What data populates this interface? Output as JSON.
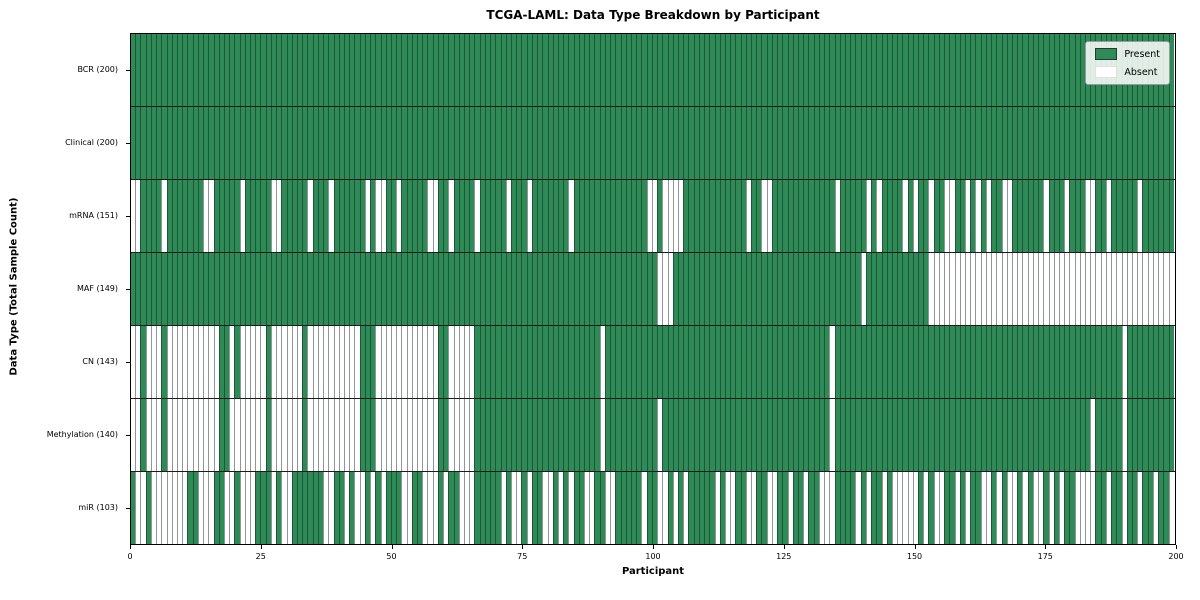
{
  "figure": {
    "title": "TCGA-LAML: Data Type Breakdown by Participant",
    "xlabel": "Participant",
    "ylabel": "Data Type (Total Sample Count)"
  },
  "chart_data": {
    "type": "heatmap",
    "title": "TCGA-LAML: Data Type Breakdown by Participant",
    "xlabel": "Participant",
    "ylabel": "Data Type (Total Sample Count)",
    "x_range": [
      0,
      200
    ],
    "x_ticks": [
      0,
      25,
      50,
      75,
      100,
      125,
      150,
      175,
      200
    ],
    "n_participants": 200,
    "grid": false,
    "colors": {
      "present": "#2e8b57",
      "absent": "#ffffff",
      "cell_edge": "#1b1b1b",
      "plot_border": "#000000"
    },
    "legend": {
      "position": "upper right",
      "entries": [
        {
          "label": "Present",
          "color": "#2e8b57"
        },
        {
          "label": "Absent",
          "color": "#ffffff"
        }
      ]
    },
    "rows": [
      {
        "label": "BCR (200)",
        "name": "BCR",
        "present_count": 200,
        "absent_indices": []
      },
      {
        "label": "Clinical (200)",
        "name": "Clinical",
        "present_count": 200,
        "absent_indices": []
      },
      {
        "label": "mRNA (151)",
        "name": "mRNA",
        "present_count": 151,
        "absent_indices": [
          0,
          1,
          6,
          14,
          15,
          21,
          27,
          28,
          34,
          38,
          45,
          47,
          48,
          51,
          57,
          58,
          61,
          66,
          72,
          76,
          84,
          99,
          100,
          102,
          103,
          104,
          105,
          118,
          121,
          122,
          135,
          141,
          143,
          148,
          150,
          153,
          156,
          157,
          160,
          162,
          164,
          167,
          168,
          175,
          179,
          183,
          184,
          187,
          193
        ]
      },
      {
        "label": "MAF (149)",
        "name": "MAF",
        "present_count": 149,
        "absent_indices": [
          101,
          102,
          103,
          140,
          153,
          154,
          155,
          156,
          157,
          158,
          159,
          160,
          161,
          162,
          163,
          164,
          165,
          166,
          167,
          168,
          169,
          170,
          171,
          172,
          173,
          174,
          175,
          176,
          177,
          178,
          179,
          180,
          181,
          182,
          183,
          184,
          185,
          186,
          187,
          188,
          189,
          190,
          191,
          192,
          193,
          194,
          195,
          196,
          197,
          198,
          199
        ]
      },
      {
        "label": "CN (143)",
        "name": "CN",
        "present_count": 143,
        "absent_indices": [
          0,
          1,
          3,
          4,
          5,
          7,
          8,
          9,
          10,
          11,
          12,
          13,
          14,
          15,
          16,
          19,
          21,
          22,
          23,
          24,
          25,
          27,
          28,
          29,
          30,
          31,
          32,
          34,
          35,
          36,
          37,
          38,
          39,
          40,
          41,
          42,
          43,
          47,
          48,
          49,
          50,
          51,
          52,
          53,
          54,
          55,
          56,
          57,
          58,
          61,
          62,
          63,
          64,
          65,
          90,
          134,
          190
        ]
      },
      {
        "label": "Methylation (140)",
        "name": "Methylation",
        "present_count": 140,
        "absent_indices": [
          0,
          1,
          3,
          4,
          5,
          7,
          8,
          9,
          10,
          11,
          12,
          13,
          14,
          15,
          16,
          19,
          20,
          21,
          22,
          23,
          24,
          25,
          27,
          28,
          29,
          30,
          31,
          32,
          34,
          35,
          36,
          37,
          38,
          39,
          40,
          41,
          42,
          43,
          47,
          48,
          49,
          50,
          51,
          52,
          53,
          54,
          55,
          56,
          57,
          58,
          61,
          62,
          63,
          64,
          65,
          90,
          101,
          134,
          184,
          190
        ]
      },
      {
        "label": "miR (103)",
        "name": "miR",
        "present_count": 103,
        "absent_indices": [
          1,
          2,
          4,
          5,
          6,
          7,
          8,
          9,
          10,
          13,
          14,
          15,
          18,
          19,
          21,
          22,
          23,
          27,
          29,
          30,
          37,
          38,
          41,
          43,
          44,
          46,
          48,
          52,
          53,
          56,
          57,
          58,
          60,
          63,
          64,
          65,
          71,
          73,
          74,
          76,
          79,
          80,
          82,
          84,
          87,
          88,
          91,
          92,
          98,
          101,
          102,
          104,
          106,
          112,
          114,
          115,
          118,
          119,
          122,
          123,
          126,
          129,
          132,
          133,
          134,
          139,
          141,
          144,
          146,
          147,
          148,
          149,
          150,
          152,
          154,
          155,
          158,
          160,
          163,
          164,
          166,
          168,
          169,
          171,
          173,
          174,
          176,
          178,
          181,
          182,
          183,
          184,
          187,
          190,
          193,
          196,
          199
        ]
      }
    ]
  }
}
